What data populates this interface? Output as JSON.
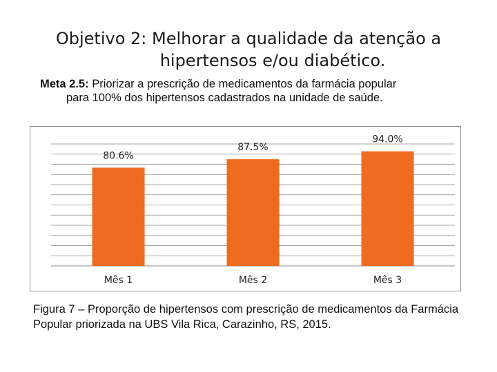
{
  "title": {
    "line1": "Objetivo 2: Melhorar a qualidade da atenção a",
    "line2": "hipertensos e/ou diabético."
  },
  "meta": {
    "label": "Meta 2.5:",
    "text_line1": " Priorizar a prescrição de medicamentos da farmácia popular",
    "text_line2": "para 100% dos hipertensos cadastrados na unidade de saúde."
  },
  "chart_data": {
    "type": "bar",
    "title": "",
    "xlabel": "",
    "ylabel": "",
    "categories": [
      "Mês 1",
      "Mês 2",
      "Mês 3"
    ],
    "values": [
      80.6,
      87.5,
      94.0
    ],
    "value_labels": [
      "80.6%",
      "87.5%",
      "94.0%"
    ],
    "ylim": [
      0,
      100
    ],
    "grid": true,
    "bar_color": "#ee6b1f"
  },
  "caption": "Figura 7 – Proporção de hipertensos com prescrição de medicamentos da Farmácia Popular priorizada na UBS Vila Rica, Carazinho, RS, 2015."
}
